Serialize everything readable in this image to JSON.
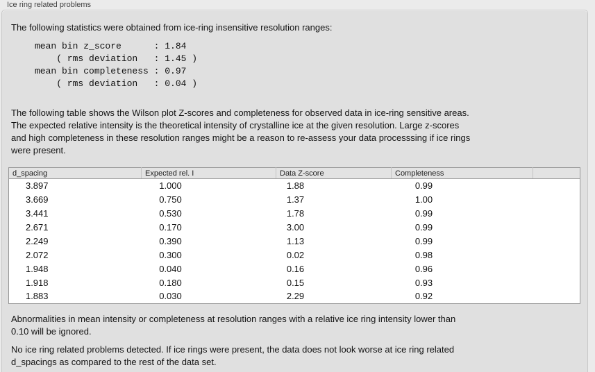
{
  "panel": {
    "title": "Ice ring related problems"
  },
  "intro_text": "The following statistics were obtained from ice-ring insensitive resolution ranges:",
  "stats_block": {
    "lines": [
      "mean bin z_score      : 1.84",
      "    ( rms deviation   : 1.45 )",
      "mean bin completeness : 0.97",
      "    ( rms deviation   : 0.04 )"
    ]
  },
  "table_description": {
    "lines": [
      "The following table shows the Wilson plot Z-scores and completeness for observed data in ice-ring sensitive areas.",
      "The expected relative intensity is the theoretical intensity of crystalline ice at the given resolution. Large z-scores",
      "and high completeness in these resolution ranges might be a reason to re-assess your data processsing if ice rings",
      "were present."
    ]
  },
  "ice_table": {
    "columns": [
      "d_spacing",
      "Expected rel. I",
      "Data Z-score",
      "Completeness"
    ],
    "rows": [
      [
        "3.897",
        "1.000",
        "1.88",
        "0.99"
      ],
      [
        "3.669",
        "0.750",
        "1.37",
        "1.00"
      ],
      [
        "3.441",
        "0.530",
        "1.78",
        "0.99"
      ],
      [
        "2.671",
        "0.170",
        "3.00",
        "0.99"
      ],
      [
        "2.249",
        "0.390",
        "1.13",
        "0.99"
      ],
      [
        "2.072",
        "0.300",
        "0.02",
        "0.98"
      ],
      [
        "1.948",
        "0.040",
        "0.16",
        "0.96"
      ],
      [
        "1.918",
        "0.180",
        "0.15",
        "0.93"
      ],
      [
        "1.883",
        "0.030",
        "2.29",
        "0.92"
      ]
    ]
  },
  "ignore_note": {
    "lines": [
      "Abnormalities in mean intensity or completeness at resolution ranges with a relative ice ring intensity lower than",
      "0.10 will be ignored."
    ]
  },
  "conclusion": {
    "lines": [
      "No ice ring related problems detected. If ice rings were present, the data does not look worse at ice ring related",
      "d_spacings as compared to the rest of the data set."
    ]
  },
  "colors": {
    "window_bg": "#ebebeb",
    "panel_bg": "#e0e0e0",
    "table_bg": "#ffffff",
    "header_bg": "#e3e3e3"
  }
}
